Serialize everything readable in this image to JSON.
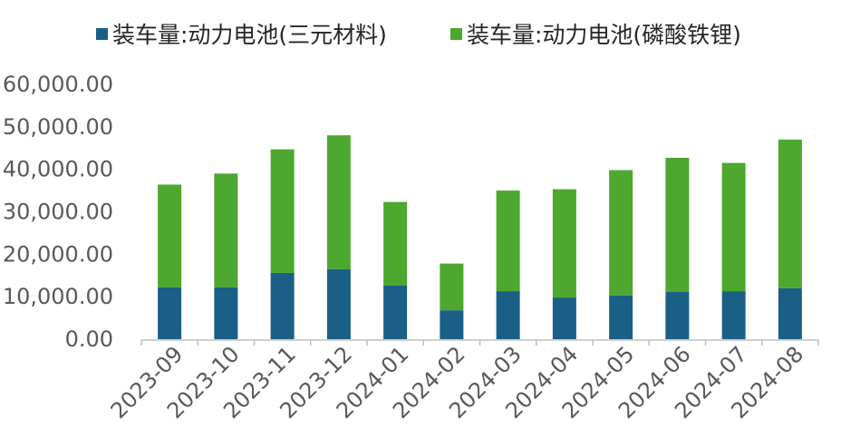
{
  "chart_data": {
    "type": "bar",
    "stacked": true,
    "title": "",
    "xlabel": "",
    "ylabel": "",
    "categories": [
      "2023-09",
      "2023-10",
      "2023-11",
      "2023-12",
      "2024-01",
      "2024-02",
      "2024-03",
      "2024-04",
      "2024-05",
      "2024-06",
      "2024-07",
      "2024-08"
    ],
    "series": [
      {
        "name": "装车量:动力电池(三元材料)",
        "color": "#1a5f85",
        "values": [
          12200,
          12200,
          15600,
          16500,
          12600,
          6800,
          11300,
          9800,
          10300,
          11100,
          11300,
          12000
        ]
      },
      {
        "name": "装车量:动力电池(磷酸铁锂)",
        "color": "#4ea72e",
        "values": [
          24200,
          26800,
          29100,
          31500,
          19700,
          11000,
          23700,
          25500,
          29500,
          31600,
          30200,
          35000
        ]
      }
    ],
    "ylim": [
      0,
      60000
    ],
    "yticks": [
      "0.00",
      "10,000.00",
      "20,000.00",
      "30,000.00",
      "40,000.00",
      "50,000.00",
      "60,000.00"
    ],
    "grid": false,
    "legend_position": "top"
  }
}
